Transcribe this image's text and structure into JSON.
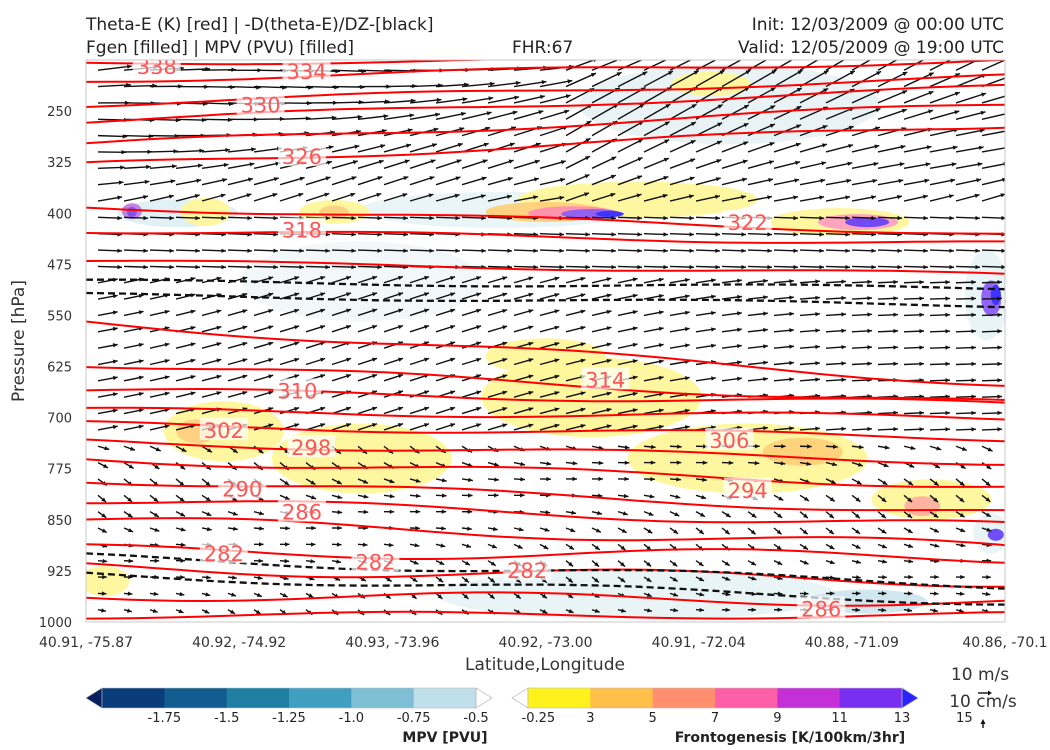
{
  "header": {
    "line1_left": "Theta-E (K) [red] | -D(theta-E)/DZ-[black]",
    "line2_left": "Fgen [filled] | MPV (PVU) [filled]",
    "fhr": "FHR:67",
    "init": "Init: 12/03/2009 @ 00:00 UTC",
    "valid": "Valid: 12/05/2009 @ 19:00 UTC"
  },
  "chart_data": {
    "type": "cross-section",
    "xlabel": "Latitude,Longitude",
    "ylabel": "Pressure [hPa]",
    "ylim": [
      1000,
      175
    ],
    "y_ticks": [
      250,
      325,
      400,
      475,
      550,
      625,
      700,
      775,
      850,
      925,
      1000
    ],
    "x_ticks": [
      "40.91, -75.87",
      "40.92, -74.92",
      "40.93, -73.96",
      "40.92, -73.00",
      "40.91, -72.04",
      "40.88, -71.09",
      "40.86, -70.1"
    ],
    "theta_e_contours": [
      {
        "label": "338",
        "x": 0.077,
        "p": 184
      },
      {
        "label": "334",
        "x": 0.24,
        "p": 191
      },
      {
        "label": "330",
        "x": 0.19,
        "p": 240
      },
      {
        "label": "326",
        "x": 0.235,
        "p": 316
      },
      {
        "label": "322",
        "x": 0.72,
        "p": 413
      },
      {
        "label": "318",
        "x": 0.235,
        "p": 424
      },
      {
        "label": "314",
        "x": 0.565,
        "p": 644
      },
      {
        "label": "310",
        "x": 0.23,
        "p": 660
      },
      {
        "label": "306",
        "x": 0.7,
        "p": 733
      },
      {
        "label": "302",
        "x": 0.15,
        "p": 718
      },
      {
        "label": "298",
        "x": 0.245,
        "p": 743
      },
      {
        "label": "294",
        "x": 0.72,
        "p": 806
      },
      {
        "label": "290",
        "x": 0.17,
        "p": 804
      },
      {
        "label": "286",
        "x": 0.235,
        "p": 838
      },
      {
        "label": "286",
        "x": 0.8,
        "p": 980
      },
      {
        "label": "282",
        "x": 0.15,
        "p": 899
      },
      {
        "label": "282",
        "x": 0.315,
        "p": 911
      },
      {
        "label": "282",
        "x": 0.48,
        "p": 924
      }
    ],
    "mpv_colorbar": {
      "title": "MPV [PVU]",
      "ticks": [
        "-1.75",
        "-1.5",
        "-1.25",
        "-1.0",
        "-0.75",
        "-0.5",
        "-0.25"
      ],
      "colors": [
        "#08205e",
        "#0b3c7a",
        "#115b8e",
        "#1f7fa3",
        "#3f9fc0",
        "#7fbfd6",
        "#bfe0ea",
        "#ffffff"
      ]
    },
    "fgen_colorbar": {
      "title": "Frontogenesis [K/100km/3hr]",
      "ticks": [
        "3",
        "5",
        "7",
        "9",
        "11",
        "13",
        "15"
      ],
      "colors": [
        "#ffffff",
        "#fff21c",
        "#ffc04a",
        "#ff8f6e",
        "#ff5fa6",
        "#c42fd6",
        "#7a2ff0",
        "#2a22ff"
      ]
    },
    "vector_key": {
      "label1": "10 m/s",
      "label2": "10 cm/s"
    }
  }
}
